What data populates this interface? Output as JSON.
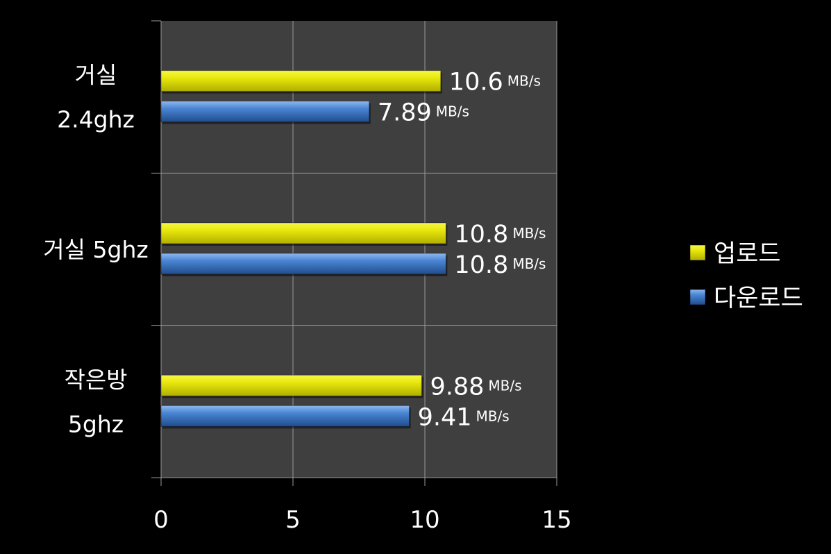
{
  "chart_data": {
    "type": "bar",
    "orientation": "horizontal",
    "categories": [
      [
        "거실",
        "2.4ghz"
      ],
      [
        "거실 5ghz"
      ],
      [
        "작은방",
        "5ghz"
      ]
    ],
    "series": [
      {
        "name": "업로드",
        "values": [
          10.6,
          10.8,
          9.88
        ],
        "value_labels": [
          "10.6",
          "10.8",
          "9.88"
        ],
        "color": "#E6E60A"
      },
      {
        "name": "다운로드",
        "values": [
          7.89,
          10.8,
          9.41
        ],
        "value_labels": [
          "7.89",
          "10.8",
          "9.41"
        ],
        "color": "#3B78C8"
      }
    ],
    "unit": "MB/s",
    "xlim": [
      0,
      15
    ],
    "xticks": [
      "0",
      "5",
      "10",
      "15"
    ],
    "grid": true,
    "plot_background": "#3F3F3F",
    "background": "#000000",
    "legend_position": "right"
  }
}
